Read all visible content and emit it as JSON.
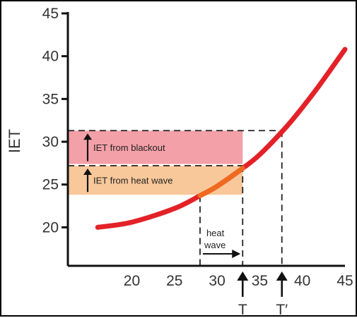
{
  "chart_data": {
    "type": "line",
    "title": "",
    "ylabel": "IET",
    "xlabel": "",
    "xlim": [
      12.5,
      45
    ],
    "ylim": [
      15.5,
      45
    ],
    "x_ticks": [
      20,
      25,
      30,
      35,
      40,
      45
    ],
    "y_ticks": [
      20,
      25,
      30,
      35,
      40,
      45
    ],
    "series": [
      {
        "x": [
          16,
          20,
          25,
          28,
          30,
          33,
          35,
          38,
          40,
          42,
          45
        ],
        "y": [
          20,
          20.6,
          22.2,
          23.7,
          24.8,
          26.9,
          28.5,
          31.6,
          34,
          36.6,
          40.8
        ]
      }
    ],
    "highlight_segment": {
      "x_from": 28,
      "x_to": 33
    },
    "bands": [
      {
        "label": "IET from blackout",
        "y_from": 27.4,
        "y_to": 31.3,
        "x_from": 12.5,
        "x_to": 33
      },
      {
        "label": "IET from heat wave",
        "y_from": 23.8,
        "y_to": 27.2,
        "x_from": 12.5,
        "x_to": 33
      }
    ],
    "reference_lines": [
      {
        "y": 31.3,
        "x_to": 37.6
      },
      {
        "y": 27.2,
        "x_to": 33
      }
    ],
    "vertical_guides": [
      {
        "x": 28,
        "y_to": 23.7
      },
      {
        "x": 33,
        "y_to": 27.2
      },
      {
        "x": 37.6,
        "y_to": 31.3
      }
    ],
    "arrow_annotation": {
      "lines": [
        "heat",
        "wave"
      ],
      "x_from": 28,
      "x_to": 33
    },
    "markers": [
      {
        "label": "T",
        "x": 33
      },
      {
        "label": "T′",
        "x": 37.6
      }
    ],
    "colors": {
      "curve": "#e32228",
      "curve_highlight": "#ef6a1f",
      "blackout_band": "#f4a0a8",
      "heatwave_band": "#f8c89a",
      "axis": "#111111"
    },
    "grid": false,
    "legend": "none"
  }
}
